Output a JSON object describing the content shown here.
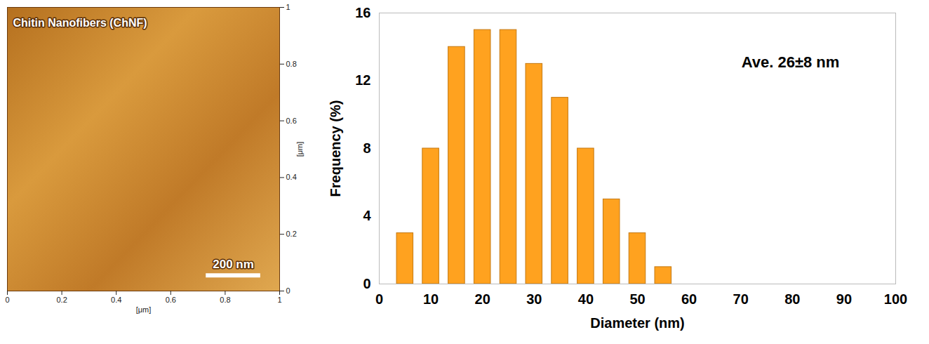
{
  "chart_data": [
    {
      "type": "image",
      "title": "Chitin Nanofibers (ChNF)",
      "xlim": [
        0,
        1
      ],
      "xticks": [
        0,
        0.2,
        0.4,
        0.6,
        0.8,
        1
      ],
      "ylim": [
        0,
        1
      ],
      "yticks": [
        0,
        0.2,
        0.4,
        0.6,
        0.8,
        1
      ],
      "x_label": "[μm]",
      "y_label": "[μm]",
      "scale_bar": {
        "label": "200 nm",
        "length": 0.2
      }
    },
    {
      "type": "bar",
      "x": [
        5,
        10,
        15,
        20,
        25,
        30,
        35,
        40,
        45,
        50,
        55
      ],
      "values": [
        3,
        8,
        14,
        15,
        15,
        13,
        11,
        8,
        5,
        3,
        1
      ],
      "color": "#ffa21f",
      "xlim": [
        0,
        100
      ],
      "xticks": [
        0,
        10,
        20,
        30,
        40,
        50,
        60,
        70,
        80,
        90,
        100
      ],
      "ylim": [
        0,
        16
      ],
      "yticks": [
        0,
        4,
        8,
        12,
        16
      ],
      "x_label": "Diameter (nm)",
      "y_label": "Frequency (%)",
      "annotations": [
        "Ave. 26±8 nm"
      ],
      "grid": false
    }
  ]
}
